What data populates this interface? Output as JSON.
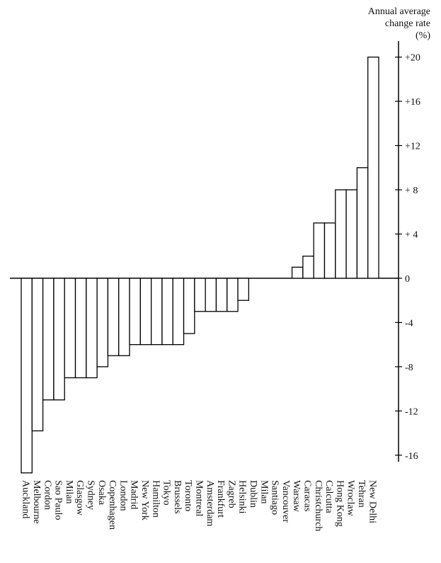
{
  "chart_data": {
    "type": "bar",
    "y_label": [
      "Annual average",
      "change rate",
      "(%)"
    ],
    "categories": [
      "Auckland",
      "Melbourne",
      "Cordon",
      "Sao Paulo",
      "Milan",
      "Glasgow",
      "Sydney",
      "Osaka",
      "Copenhagen",
      "London",
      "Madrid",
      "New York",
      "Hamilton",
      "Tokyo",
      "Brussels",
      "Toronto",
      "Montreal",
      "Amsterdam",
      "Frankfurt",
      "Zagreb",
      "Helsinki",
      "Dublin",
      "Milan",
      "Santiago",
      "Vancouver",
      "Warsaw",
      "Caracas",
      "Christchurch",
      "Calcutta",
      "Hong Kong",
      "Wroclaw",
      "Tehran",
      "New Delhi"
    ],
    "values": [
      -17.6,
      -13.8,
      -11,
      -11,
      -9,
      -9,
      -9,
      -8,
      -7,
      -7,
      -6,
      -6,
      -6,
      -6,
      -6,
      -5,
      -3,
      -3,
      -3,
      -3,
      -2,
      0,
      0,
      0,
      0,
      1,
      2,
      5,
      5,
      8,
      8,
      10,
      20
    ],
    "color": "#ffffff",
    "ylim": [
      -18,
      21
    ],
    "yticks": [
      {
        "value": 20,
        "label": "+20"
      },
      {
        "value": 16,
        "label": "+16"
      },
      {
        "value": 12,
        "label": "+12"
      },
      {
        "value": 8,
        "label": "+ 8"
      },
      {
        "value": 4,
        "label": "+ 4"
      },
      0,
      -4,
      -8,
      -12,
      -16
    ],
    "axis_position": "right"
  }
}
